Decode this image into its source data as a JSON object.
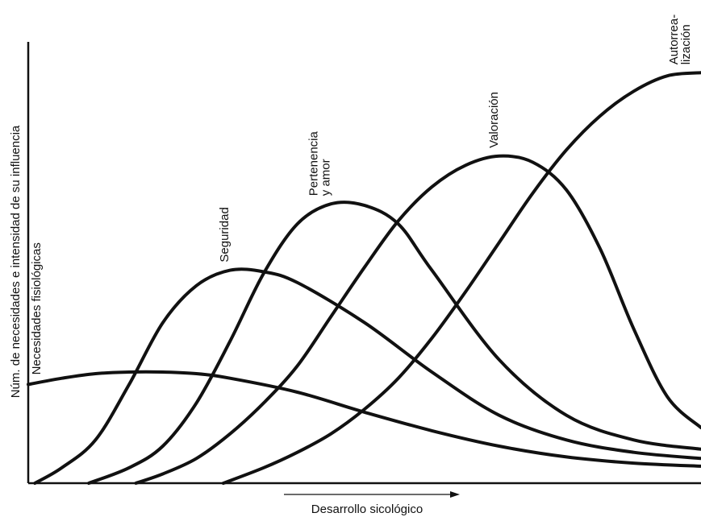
{
  "chart_data": {
    "type": "line",
    "title": "",
    "xlabel": "Desarrollo sicológico",
    "ylabel": "Núm. de necesidades e intensidad de su influencia",
    "series": [
      {
        "name": "Necesidades fisiológicas",
        "x": [
          0,
          5,
          10,
          15,
          20,
          25,
          30,
          40,
          50,
          60,
          70,
          80,
          90,
          100
        ],
        "y": [
          32,
          34,
          35.5,
          36,
          36,
          35.5,
          34,
          29.5,
          23,
          17,
          12,
          8.5,
          6.5,
          5.5
        ]
      },
      {
        "name": "Seguridad",
        "x": [
          1,
          5,
          10,
          15,
          20,
          25,
          30,
          35,
          40,
          50,
          60,
          70,
          80,
          90,
          100
        ],
        "y": [
          0,
          5,
          14,
          32,
          52,
          64,
          69,
          68.5,
          65,
          52,
          36,
          22,
          14,
          10,
          8
        ]
      },
      {
        "name": "Pertenencia y amor",
        "x": [
          9,
          15,
          20,
          25,
          30,
          35,
          40,
          45,
          50,
          55,
          60,
          70,
          80,
          90,
          100
        ],
        "y": [
          0,
          5,
          12,
          26,
          46,
          68,
          84,
          90.5,
          90,
          84,
          69,
          40,
          22,
          14,
          11
        ]
      },
      {
        "name": "Valoración",
        "x": [
          16,
          20,
          25,
          30,
          35,
          40,
          45,
          50,
          55,
          60,
          65,
          70,
          75,
          80,
          85,
          90,
          95,
          100
        ],
        "y": [
          0,
          3,
          8,
          16,
          26,
          38,
          54,
          70,
          85,
          96,
          103,
          106,
          104,
          95,
          76,
          50,
          28,
          18
        ]
      },
      {
        "name": "Autorrea-lización",
        "x": [
          29,
          35,
          40,
          45,
          50,
          55,
          60,
          65,
          70,
          75,
          80,
          85,
          90,
          95,
          100
        ],
        "y": [
          0,
          5,
          10,
          16,
          24,
          34,
          47,
          62,
          78,
          94,
          108,
          119,
          127,
          132,
          133
        ]
      }
    ],
    "series_labels": [
      [
        "Necesidades fisiológicas"
      ],
      [
        "Seguridad"
      ],
      [
        "Pertenencia",
        "y amor"
      ],
      [
        "Valoración"
      ],
      [
        "Autorrea-",
        "lización"
      ]
    ],
    "xlim": [
      0,
      100
    ],
    "ylim": [
      0,
      143
    ],
    "grid": false,
    "legend": "none"
  }
}
